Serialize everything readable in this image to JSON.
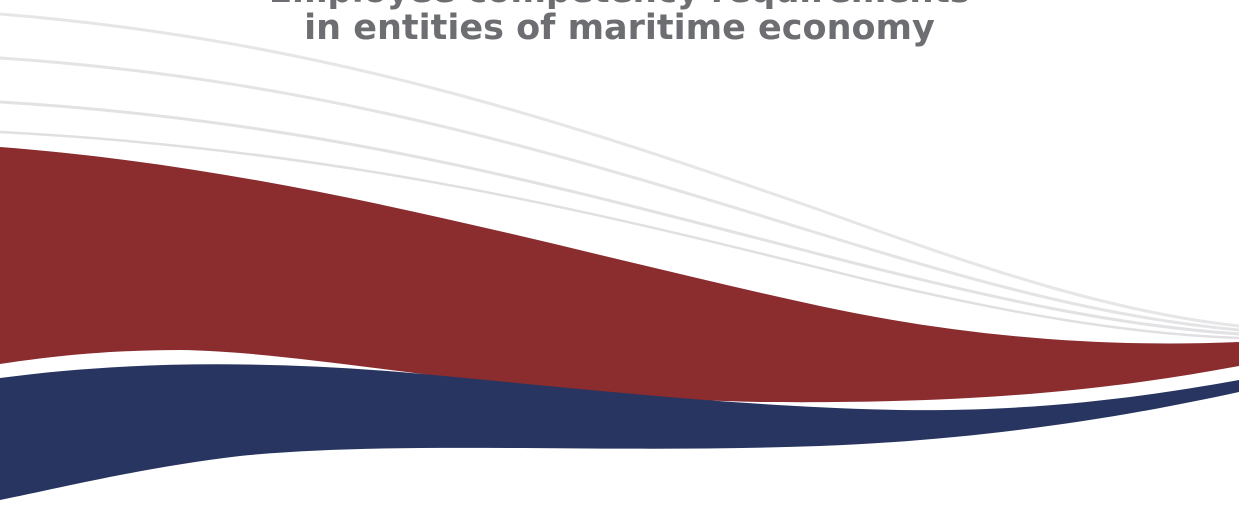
{
  "title": {
    "line1_partial": "Employee competency requirements",
    "line2": "in entities of maritime economy"
  },
  "colors": {
    "title": "#6d6e71",
    "band_red": "#8b2c2f",
    "band_navy": "#283560",
    "swoosh_lines": "#e4e4e6"
  }
}
